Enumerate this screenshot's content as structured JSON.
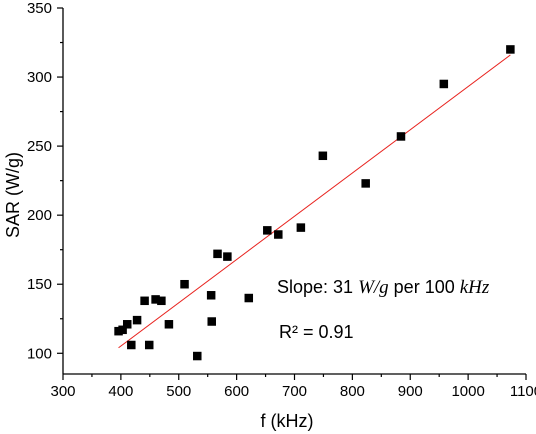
{
  "chart_data": {
    "type": "scatter",
    "xlabel": "f (kHz)",
    "ylabel": "SAR (W/g)",
    "xlim": [
      300,
      1100
    ],
    "ylim": [
      85,
      350
    ],
    "xticks": [
      300,
      400,
      500,
      600,
      700,
      800,
      900,
      1000,
      1100
    ],
    "yticks": [
      100,
      150,
      200,
      250,
      300,
      350
    ],
    "grid": false,
    "marker_color": "#000000",
    "fit_color": "#e8231f",
    "points": [
      {
        "x": 396,
        "y": 116
      },
      {
        "x": 403,
        "y": 117
      },
      {
        "x": 411,
        "y": 121
      },
      {
        "x": 418,
        "y": 106
      },
      {
        "x": 428,
        "y": 124
      },
      {
        "x": 441,
        "y": 138
      },
      {
        "x": 449,
        "y": 106
      },
      {
        "x": 460,
        "y": 139
      },
      {
        "x": 470,
        "y": 138
      },
      {
        "x": 483,
        "y": 121
      },
      {
        "x": 510,
        "y": 150
      },
      {
        "x": 532,
        "y": 98
      },
      {
        "x": 556,
        "y": 142
      },
      {
        "x": 557,
        "y": 123
      },
      {
        "x": 567,
        "y": 172
      },
      {
        "x": 584,
        "y": 170
      },
      {
        "x": 621,
        "y": 140
      },
      {
        "x": 653,
        "y": 189
      },
      {
        "x": 672,
        "y": 186
      },
      {
        "x": 711,
        "y": 191
      },
      {
        "x": 749,
        "y": 243
      },
      {
        "x": 823,
        "y": 223
      },
      {
        "x": 884,
        "y": 257
      },
      {
        "x": 958,
        "y": 295
      },
      {
        "x": 1073,
        "y": 320
      }
    ],
    "fit_line": {
      "x": [
        396,
        1073
      ],
      "y": [
        104,
        316
      ]
    },
    "annotations": {
      "slope_prefix": "Slope: 31 ",
      "slope_unit1": "W/g",
      "slope_mid": " per 100 ",
      "slope_unit2": "kHz",
      "r2": "R² = 0.91"
    }
  }
}
